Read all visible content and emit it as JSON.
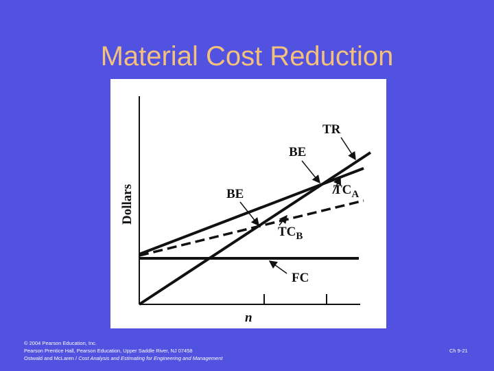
{
  "header": {
    "title": "Material Cost Reduction"
  },
  "diagram": {
    "y_axis_label": "Dollars",
    "x_axis_label": "n",
    "labels": {
      "tr": "TR",
      "be_upper": "BE",
      "tca": {
        "text": "TC",
        "subscript": "A"
      },
      "be_lower": "BE",
      "tcb": {
        "text": "TC",
        "subscript": "B"
      },
      "fc": "FC"
    }
  },
  "footer": {
    "copyright": "© 2004 Pearson Education, Inc.",
    "publisher": "Pearson Prentice Hall, Pearson Education, Upper Saddle River, NJ 07458",
    "authors": "Ostwald and McLaren /",
    "book": "Cost Analysis and Estimating for Engineering and Management",
    "slide_number": "Ch 9-21"
  }
}
